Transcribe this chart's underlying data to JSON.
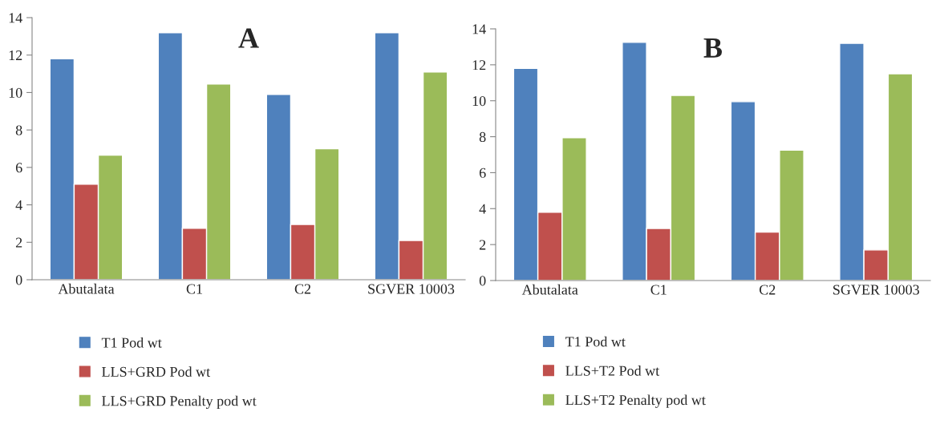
{
  "chart_data": [
    {
      "type": "bar",
      "title": "A",
      "categories": [
        "Abutalata",
        "C1",
        "C2",
        "SGVER 10003"
      ],
      "series": [
        {
          "name": "T1 Pod wt",
          "color": "#4f81bd",
          "values": [
            11.8,
            13.2,
            9.9,
            13.2
          ]
        },
        {
          "name": "LLS+GRD Pod wt",
          "color": "#c0504d",
          "values": [
            5.1,
            2.75,
            2.95,
            2.1
          ]
        },
        {
          "name": "LLS+GRD Penalty pod wt",
          "color": "#9bbb59",
          "values": [
            6.65,
            10.45,
            7.0,
            11.1
          ]
        }
      ],
      "ylim": [
        0,
        14
      ],
      "yticks": [
        0,
        2,
        4,
        6,
        8,
        10,
        12,
        14
      ],
      "grid": false,
      "legend": "bottom"
    },
    {
      "type": "bar",
      "title": "B",
      "categories": [
        "Abutalata",
        "C1",
        "C2",
        "SGVER 10003"
      ],
      "series": [
        {
          "name": "T1 Pod wt",
          "color": "#4f81bd",
          "values": [
            11.8,
            13.25,
            9.95,
            13.2
          ]
        },
        {
          "name": "LLS+T2 Pod wt",
          "color": "#c0504d",
          "values": [
            3.8,
            2.9,
            2.7,
            1.7
          ]
        },
        {
          "name": "LLS+T2 Penalty pod wt",
          "color": "#9bbb59",
          "values": [
            7.95,
            10.3,
            7.25,
            11.5
          ]
        }
      ],
      "ylim": [
        0,
        14
      ],
      "yticks": [
        0,
        2,
        4,
        6,
        8,
        10,
        12,
        14
      ],
      "grid": false,
      "legend": "bottom"
    }
  ]
}
